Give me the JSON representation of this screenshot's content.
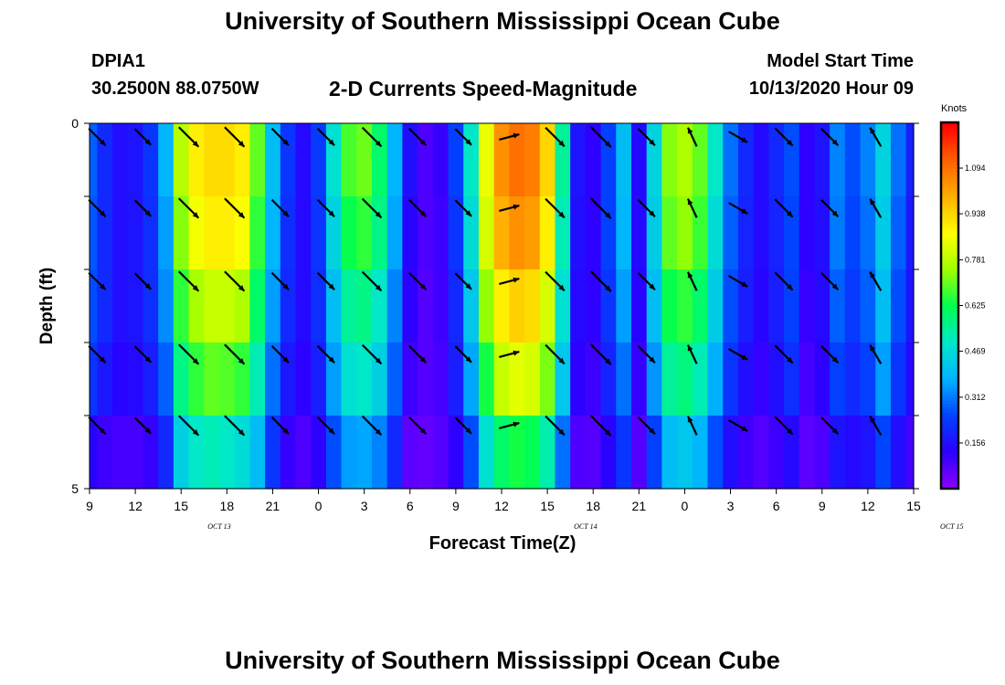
{
  "header": {
    "title": "University of Southern Mississippi Ocean Cube",
    "station": "DPIA1",
    "coords": "30.2500N 88.0750W",
    "subtitle": "2-D Currents Speed-Magnitude",
    "model_start_label": "Model Start Time",
    "model_start_value": "10/13/2020 Hour 09"
  },
  "footer": {
    "title": "University of Southern Mississippi Ocean Cube"
  },
  "chart_data": {
    "type": "heatmap",
    "title": "2-D Currents Speed-Magnitude",
    "xlabel": "Forecast Time(Z)",
    "ylabel": "Depth (ft)",
    "x_ticks": [
      "9",
      "12",
      "15",
      "18",
      "21",
      "0",
      "3",
      "6",
      "9",
      "12",
      "15",
      "18",
      "21",
      "0",
      "3",
      "6",
      "9",
      "12",
      "15"
    ],
    "date_labels": [
      {
        "label": "OCT 13",
        "at_hour": 17.5
      },
      {
        "label": "OCT 14",
        "at_hour": 41.5
      },
      {
        "label": "OCT 15",
        "at_hour": 65.5
      }
    ],
    "x_range_hours": [
      0,
      54
    ],
    "y_ticks": [
      "0",
      "5"
    ],
    "y_range_ft": [
      0,
      5
    ],
    "depth_layers": 5,
    "colorbar": {
      "label": "Knots",
      "ticks": [
        0.156,
        0.312,
        0.469,
        0.625,
        0.781,
        0.938,
        1.094
      ],
      "range": [
        0,
        1.25
      ],
      "colors": [
        "#8a00ff",
        "#2a00ff",
        "#0044ff",
        "#00b4ff",
        "#00e8c8",
        "#00ff50",
        "#a0ff00",
        "#ffff00",
        "#ffb000",
        "#ff6000",
        "#ff0000"
      ]
    },
    "time_series": [
      {
        "hour": 0,
        "speeds": [
          0.28,
          0.27,
          0.26,
          0.22,
          0.13
        ],
        "dir": 135
      },
      {
        "hour": 1,
        "speeds": [
          0.2,
          0.2,
          0.2,
          0.17,
          0.1
        ],
        "dir": 135
      },
      {
        "hour": 2,
        "speeds": [
          0.15,
          0.15,
          0.15,
          0.13,
          0.09
        ],
        "dir": 135
      },
      {
        "hour": 3,
        "speeds": [
          0.16,
          0.16,
          0.16,
          0.14,
          0.09
        ],
        "dir": 135
      },
      {
        "hour": 4,
        "speeds": [
          0.22,
          0.21,
          0.21,
          0.18,
          0.11
        ],
        "dir": 135
      },
      {
        "hour": 5,
        "speeds": [
          0.38,
          0.35,
          0.33,
          0.28,
          0.2
        ],
        "dir": 135
      },
      {
        "hour": 6,
        "speeds": [
          0.78,
          0.73,
          0.66,
          0.57,
          0.44
        ],
        "dir": 135
      },
      {
        "hour": 7,
        "speeds": [
          0.9,
          0.86,
          0.76,
          0.66,
          0.5
        ],
        "dir": 135
      },
      {
        "hour": 8,
        "speeds": [
          0.93,
          0.9,
          0.8,
          0.7,
          0.52
        ],
        "dir": 135
      },
      {
        "hour": 9,
        "speeds": [
          0.93,
          0.9,
          0.8,
          0.69,
          0.5
        ],
        "dir": 135
      },
      {
        "hour": 10,
        "speeds": [
          0.9,
          0.87,
          0.77,
          0.66,
          0.47
        ],
        "dir": 135
      },
      {
        "hour": 11,
        "speeds": [
          0.7,
          0.66,
          0.6,
          0.52,
          0.4
        ],
        "dir": 135
      },
      {
        "hour": 12,
        "speeds": [
          0.4,
          0.38,
          0.35,
          0.3,
          0.22
        ],
        "dir": 135
      },
      {
        "hour": 13,
        "speeds": [
          0.22,
          0.21,
          0.2,
          0.17,
          0.11
        ],
        "dir": 135
      },
      {
        "hour": 14,
        "speeds": [
          0.14,
          0.14,
          0.14,
          0.12,
          0.08
        ],
        "dir": 135
      },
      {
        "hour": 15,
        "speeds": [
          0.23,
          0.22,
          0.21,
          0.18,
          0.12
        ],
        "dir": 135
      },
      {
        "hour": 16,
        "speeds": [
          0.48,
          0.45,
          0.4,
          0.35,
          0.26
        ],
        "dir": 135
      },
      {
        "hour": 17,
        "speeds": [
          0.68,
          0.63,
          0.55,
          0.48,
          0.35
        ],
        "dir": 135
      },
      {
        "hour": 18,
        "speeds": [
          0.71,
          0.66,
          0.57,
          0.5,
          0.36
        ],
        "dir": 135
      },
      {
        "hour": 19,
        "speeds": [
          0.6,
          0.57,
          0.5,
          0.44,
          0.32
        ],
        "dir": 135
      },
      {
        "hour": 20,
        "speeds": [
          0.38,
          0.36,
          0.32,
          0.28,
          0.2
        ],
        "dir": 135
      },
      {
        "hour": 21,
        "speeds": [
          0.15,
          0.13,
          0.12,
          0.1,
          0.06
        ],
        "dir": 135
      },
      {
        "hour": 22,
        "speeds": [
          0.08,
          0.08,
          0.07,
          0.07,
          0.05
        ],
        "dir": 70
      },
      {
        "hour": 23,
        "speeds": [
          0.11,
          0.1,
          0.1,
          0.09,
          0.07
        ],
        "dir": 25
      },
      {
        "hour": 24,
        "speeds": [
          0.24,
          0.22,
          0.2,
          0.18,
          0.12
        ],
        "dir": 135
      },
      {
        "hour": 25,
        "speeds": [
          0.5,
          0.47,
          0.42,
          0.36,
          0.26
        ],
        "dir": 135
      },
      {
        "hour": 26,
        "speeds": [
          0.85,
          0.82,
          0.74,
          0.64,
          0.48
        ],
        "dir": 135
      },
      {
        "hour": 27,
        "speeds": [
          1.05,
          1.0,
          0.9,
          0.8,
          0.6
        ],
        "dir": 135
      },
      {
        "hour": 28,
        "speeds": [
          1.1,
          1.05,
          0.95,
          0.84,
          0.64
        ],
        "dir": 135
      },
      {
        "hour": 29,
        "speeds": [
          1.08,
          1.03,
          0.93,
          0.82,
          0.62
        ],
        "dir": 135
      },
      {
        "hour": 30,
        "speeds": [
          0.94,
          0.9,
          0.82,
          0.72,
          0.53
        ],
        "dir": 135
      },
      {
        "hour": 31,
        "speeds": [
          0.55,
          0.52,
          0.48,
          0.42,
          0.3
        ],
        "dir": 135
      },
      {
        "hour": 32,
        "speeds": [
          0.16,
          0.15,
          0.14,
          0.12,
          0.08
        ],
        "dir": 155
      },
      {
        "hour": 33,
        "speeds": [
          0.12,
          0.12,
          0.12,
          0.1,
          0.07
        ],
        "dir": 20
      },
      {
        "hour": 34,
        "speeds": [
          0.24,
          0.24,
          0.22,
          0.19,
          0.13
        ],
        "dir": 135
      },
      {
        "hour": 35,
        "speeds": [
          0.4,
          0.38,
          0.35,
          0.3,
          0.22
        ],
        "dir": 135
      },
      {
        "hour": 36,
        "speeds": [
          0.14,
          0.14,
          0.13,
          0.11,
          0.07
        ],
        "dir": 135
      },
      {
        "hour": 37,
        "speeds": [
          0.45,
          0.43,
          0.4,
          0.34,
          0.24
        ],
        "dir": 135
      },
      {
        "hour": 38,
        "speeds": [
          0.73,
          0.7,
          0.63,
          0.55,
          0.4
        ],
        "dir": 135
      },
      {
        "hour": 39,
        "speeds": [
          0.77,
          0.74,
          0.66,
          0.58,
          0.42
        ],
        "dir": 135
      },
      {
        "hour": 40,
        "speeds": [
          0.7,
          0.67,
          0.6,
          0.52,
          0.38
        ],
        "dir": 135
      },
      {
        "hour": 41,
        "speeds": [
          0.5,
          0.47,
          0.43,
          0.37,
          0.26
        ],
        "dir": 135
      },
      {
        "hour": 42,
        "speeds": [
          0.3,
          0.28,
          0.26,
          0.22,
          0.15
        ],
        "dir": 135
      },
      {
        "hour": 43,
        "speeds": [
          0.2,
          0.19,
          0.18,
          0.15,
          0.1
        ],
        "dir": 135
      },
      {
        "hour": 44,
        "speeds": [
          0.14,
          0.14,
          0.13,
          0.11,
          0.07
        ],
        "dir": 135
      },
      {
        "hour": 45,
        "speeds": [
          0.2,
          0.19,
          0.18,
          0.15,
          0.1
        ],
        "dir": 135
      },
      {
        "hour": 46,
        "speeds": [
          0.26,
          0.25,
          0.24,
          0.21,
          0.14
        ],
        "dir": 135
      },
      {
        "hour": 47,
        "speeds": [
          0.12,
          0.12,
          0.11,
          0.09,
          0.06
        ],
        "dir": 160
      },
      {
        "hour": 48,
        "speeds": [
          0.16,
          0.15,
          0.14,
          0.12,
          0.08
        ],
        "dir": 150
      },
      {
        "hour": 49,
        "speeds": [
          0.32,
          0.31,
          0.28,
          0.24,
          0.16
        ],
        "dir": 135
      },
      {
        "hour": 50,
        "speeds": [
          0.26,
          0.25,
          0.23,
          0.2,
          0.14
        ],
        "dir": 135
      },
      {
        "hour": 51,
        "speeds": [
          0.32,
          0.3,
          0.28,
          0.24,
          0.16
        ],
        "dir": 135
      },
      {
        "hour": 52,
        "speeds": [
          0.45,
          0.43,
          0.4,
          0.35,
          0.25
        ],
        "dir": 135
      },
      {
        "hour": 53,
        "speeds": [
          0.3,
          0.28,
          0.26,
          0.22,
          0.15
        ],
        "dir": 135
      },
      {
        "hour": 54,
        "speeds": [
          0.18,
          0.17,
          0.16,
          0.14,
          0.09
        ],
        "dir": 135
      }
    ],
    "vectors": [
      {
        "hour": 0.5,
        "dir": 135,
        "speed": 0.55
      },
      {
        "hour": 3.5,
        "dir": 135,
        "speed": 0.5
      },
      {
        "hour": 6.5,
        "dir": 135,
        "speed": 0.75
      },
      {
        "hour": 9.5,
        "dir": 135,
        "speed": 0.75
      },
      {
        "hour": 12.5,
        "dir": 135,
        "speed": 0.55
      },
      {
        "hour": 15.5,
        "dir": 135,
        "speed": 0.55
      },
      {
        "hour": 18.5,
        "dir": 135,
        "speed": 0.7
      },
      {
        "hour": 21.5,
        "dir": 135,
        "speed": 0.55
      },
      {
        "hour": 24.5,
        "dir": 135,
        "speed": 0.5
      },
      {
        "hour": 27.5,
        "dir": 75,
        "speed": 0.4
      },
      {
        "hour": 30.5,
        "dir": 135,
        "speed": 0.7
      },
      {
        "hour": 33.5,
        "dir": 135,
        "speed": 0.8
      },
      {
        "hour": 36.5,
        "dir": 135,
        "speed": 0.55
      },
      {
        "hour": 39.5,
        "dir": 335,
        "speed": 0.4
      },
      {
        "hour": 42.5,
        "dir": 120,
        "speed": 0.45
      },
      {
        "hour": 45.5,
        "dir": 135,
        "speed": 0.6
      },
      {
        "hour": 48.5,
        "dir": 135,
        "speed": 0.55
      },
      {
        "hour": 51.5,
        "dir": 330,
        "speed": 0.45
      }
    ]
  }
}
